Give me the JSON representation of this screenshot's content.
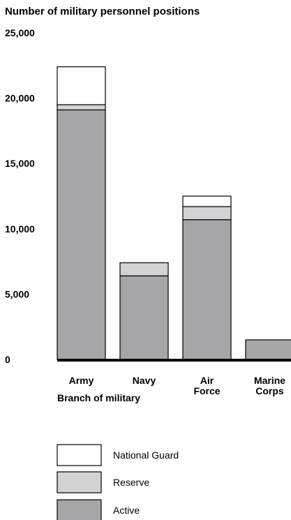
{
  "chart_data": {
    "type": "bar",
    "stacked": true,
    "title": "Number of military personnel positions",
    "xlabel": "Branch of military",
    "ylabel": "",
    "ylim": [
      0,
      25000
    ],
    "yticks": [
      0,
      5000,
      10000,
      15000,
      20000,
      25000
    ],
    "ytick_labels": [
      "0",
      "5,000",
      "10,000",
      "15,000",
      "20,000",
      "25,000"
    ],
    "categories": [
      {
        "name": "Army",
        "lines": [
          "Army"
        ]
      },
      {
        "name": "Navy",
        "lines": [
          "Navy"
        ]
      },
      {
        "name": "Air Force",
        "lines": [
          "Air",
          "Force"
        ]
      },
      {
        "name": "Marine Corps",
        "lines": [
          "Marine",
          "Corps"
        ]
      }
    ],
    "series": [
      {
        "name": "Active",
        "color": "#a6a6a9",
        "values": [
          19100,
          6400,
          10700,
          1500
        ]
      },
      {
        "name": "Reserve",
        "color": "#d3d3d5",
        "values": [
          400,
          1000,
          1000,
          0
        ]
      },
      {
        "name": "National Guard",
        "color": "#ffffff",
        "values": [
          2900,
          0,
          800,
          0
        ]
      }
    ],
    "legend_order": [
      "National Guard",
      "Reserve",
      "Active"
    ],
    "legend_position": "bottom-left",
    "grid": false
  }
}
